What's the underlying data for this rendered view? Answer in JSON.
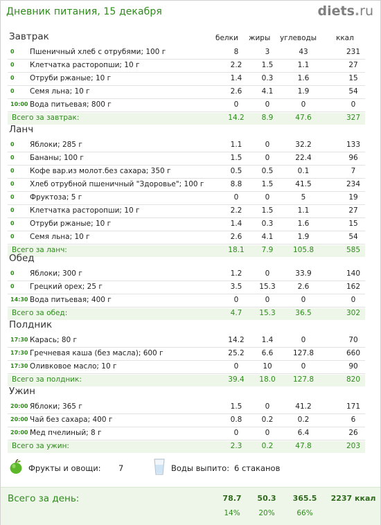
{
  "header": {
    "title": "Дневник питания, 15 декабря",
    "logo_main": "diets",
    "logo_dot": ".",
    "logo_tld": "ru"
  },
  "columns": {
    "protein": "белки",
    "fat": "жиры",
    "carbs": "углеводы",
    "kcal": "ккал"
  },
  "meals": [
    {
      "title": "Завтрак",
      "items": [
        {
          "time": "0",
          "food": "Пшеничный хлеб с отрубями; 100 г",
          "protein": "8",
          "fat": "3",
          "carbs": "43",
          "kcal": "231"
        },
        {
          "time": "0",
          "food": "Клетчатка расторопши; 10 г",
          "protein": "2.2",
          "fat": "1.5",
          "carbs": "1.1",
          "kcal": "27"
        },
        {
          "time": "0",
          "food": "Отруби ржаные; 10 г",
          "protein": "1.4",
          "fat": "0.3",
          "carbs": "1.6",
          "kcal": "15"
        },
        {
          "time": "0",
          "food": "Семя льна; 10 г",
          "protein": "2.6",
          "fat": "4.1",
          "carbs": "1.9",
          "kcal": "54"
        },
        {
          "time": "10:00",
          "food": "Вода питьевая; 800 г",
          "protein": "0",
          "fat": "0",
          "carbs": "0",
          "kcal": "0"
        }
      ],
      "total": {
        "label": "Всего за завтрак:",
        "protein": "14.2",
        "fat": "8.9",
        "carbs": "47.6",
        "kcal": "327"
      }
    },
    {
      "title": "Ланч",
      "items": [
        {
          "time": "0",
          "food": "Яблоки; 285 г",
          "protein": "1.1",
          "fat": "0",
          "carbs": "32.2",
          "kcal": "133"
        },
        {
          "time": "0",
          "food": "Бананы; 100 г",
          "protein": "1.5",
          "fat": "0",
          "carbs": "22.4",
          "kcal": "96"
        },
        {
          "time": "0",
          "food": "Кофе вар.из молот.без сахара; 350 г",
          "protein": "0.5",
          "fat": "0.5",
          "carbs": "0.1",
          "kcal": "7"
        },
        {
          "time": "0",
          "food": "Хлеб отрубной пшеничный \"Здоровье\"; 100 г",
          "protein": "8.8",
          "fat": "1.5",
          "carbs": "41.5",
          "kcal": "234"
        },
        {
          "time": "0",
          "food": "Фруктоза; 5 г",
          "protein": "0",
          "fat": "0",
          "carbs": "5",
          "kcal": "19"
        },
        {
          "time": "0",
          "food": "Клетчатка расторопши; 10 г",
          "protein": "2.2",
          "fat": "1.5",
          "carbs": "1.1",
          "kcal": "27"
        },
        {
          "time": "0",
          "food": "Отруби ржаные; 10 г",
          "protein": "1.4",
          "fat": "0.3",
          "carbs": "1.6",
          "kcal": "15"
        },
        {
          "time": "0",
          "food": "Семя льна; 10 г",
          "protein": "2.6",
          "fat": "4.1",
          "carbs": "1.9",
          "kcal": "54"
        }
      ],
      "total": {
        "label": "Всего за ланч:",
        "protein": "18.1",
        "fat": "7.9",
        "carbs": "105.8",
        "kcal": "585"
      }
    },
    {
      "title": "Обед",
      "items": [
        {
          "time": "0",
          "food": "Яблоки; 300 г",
          "protein": "1.2",
          "fat": "0",
          "carbs": "33.9",
          "kcal": "140"
        },
        {
          "time": "0",
          "food": "Грецкий орех; 25 г",
          "protein": "3.5",
          "fat": "15.3",
          "carbs": "2.6",
          "kcal": "162"
        },
        {
          "time": "14:30",
          "food": "Вода питьевая; 400 г",
          "protein": "0",
          "fat": "0",
          "carbs": "0",
          "kcal": "0"
        }
      ],
      "total": {
        "label": "Всего за обед:",
        "protein": "4.7",
        "fat": "15.3",
        "carbs": "36.5",
        "kcal": "302"
      }
    },
    {
      "title": "Полдник",
      "items": [
        {
          "time": "17:30",
          "food": "Карась; 80 г",
          "protein": "14.2",
          "fat": "1.4",
          "carbs": "0",
          "kcal": "70"
        },
        {
          "time": "17:30",
          "food": "Гречневая каша (без масла); 600 г",
          "protein": "25.2",
          "fat": "6.6",
          "carbs": "127.8",
          "kcal": "660"
        },
        {
          "time": "17:30",
          "food": "Оливковое масло; 10 г",
          "protein": "0",
          "fat": "10",
          "carbs": "0",
          "kcal": "90"
        }
      ],
      "total": {
        "label": "Всего за полдник:",
        "protein": "39.4",
        "fat": "18.0",
        "carbs": "127.8",
        "kcal": "820"
      }
    },
    {
      "title": "Ужин",
      "items": [
        {
          "time": "20:00",
          "food": "Яблоки; 365 г",
          "protein": "1.5",
          "fat": "0",
          "carbs": "41.2",
          "kcal": "171"
        },
        {
          "time": "20:00",
          "food": "Чай без сахара; 400 г",
          "protein": "0.8",
          "fat": "0.2",
          "carbs": "0.2",
          "kcal": "6"
        },
        {
          "time": "20:00",
          "food": "Мед пчелиный; 8 г",
          "protein": "0",
          "fat": "0",
          "carbs": "6.4",
          "kcal": "26"
        }
      ],
      "total": {
        "label": "Всего за ужин:",
        "protein": "2.3",
        "fat": "0.2",
        "carbs": "47.8",
        "kcal": "203"
      }
    }
  ],
  "summary": {
    "fruits_label": "Фрукты и овощи:",
    "fruits_value": "7",
    "water_label": "Воды выпито:",
    "water_value": "6 стаканов",
    "fruit_icon": "green-apple-icon",
    "water_icon": "water-glass-icon"
  },
  "day_total": {
    "label": "Всего за день:",
    "protein": "78.7",
    "fat": "50.3",
    "carbs": "365.5",
    "kcal": "2237 ккал",
    "protein_pct": "14%",
    "fat_pct": "20%",
    "carbs_pct": "66%"
  },
  "colors": {
    "accent": "#2f8a1c",
    "total_bg": "#eef6ea"
  }
}
